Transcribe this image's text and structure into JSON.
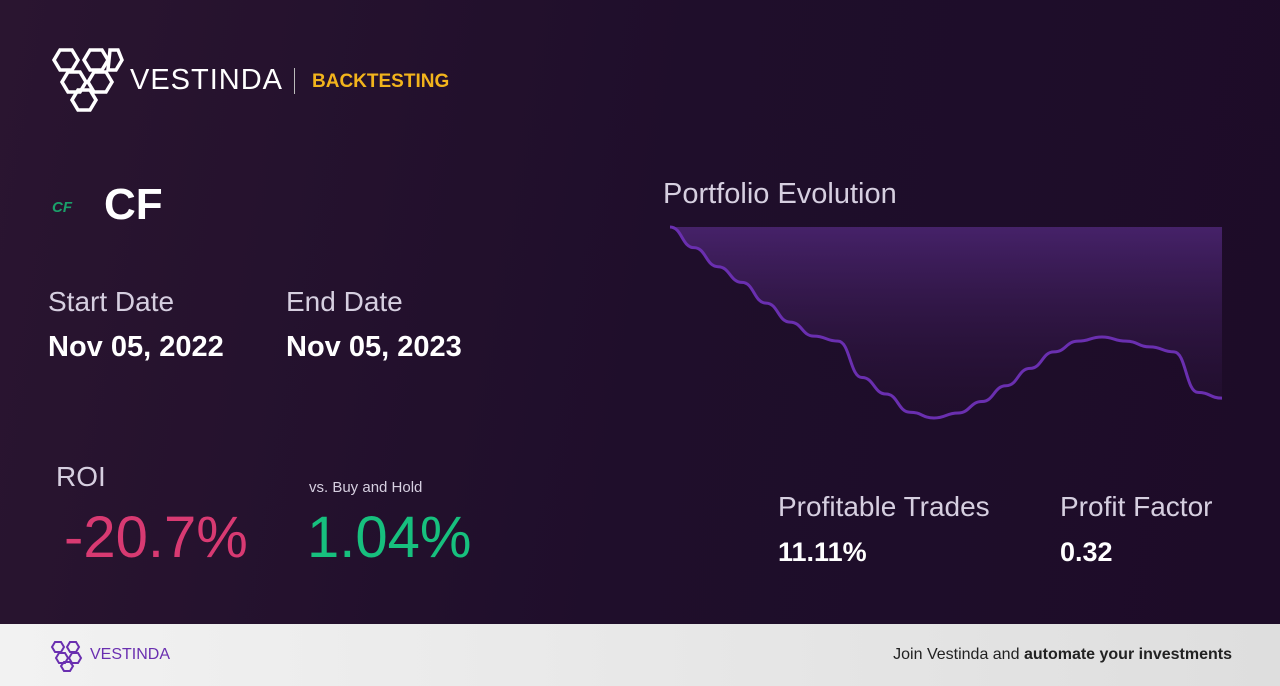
{
  "header": {
    "brand": "VESTINDA",
    "section": "BACKTESTING"
  },
  "asset": {
    "icon_text": "CF",
    "ticker": "CF"
  },
  "dates": {
    "start_label": "Start Date",
    "start": "Nov 05, 2022",
    "end_label": "End Date",
    "end": "Nov 05, 2023"
  },
  "roi": {
    "label": "ROI",
    "value": "-20.7%",
    "benchmark_label": "vs. Buy and Hold",
    "benchmark": "1.04%"
  },
  "portfolio": {
    "type": "area",
    "title": "Portfolio Evolution",
    "color": "#6a2fb0",
    "values": [
      0,
      -2.5,
      -4.8,
      -6.7,
      -9.2,
      -11.5,
      -13.2,
      -13.8,
      -18.2,
      -20.2,
      -22.4,
      -23.1,
      -22.5,
      -21.1,
      -19.2,
      -17.1,
      -15.1,
      -13.8,
      -13.3,
      -13.8,
      -14.5,
      -15.1,
      -20.0,
      -20.7
    ]
  },
  "stats": {
    "trades_label": "Profitable Trades",
    "trades": "11.11%",
    "factor_label": "Profit Factor",
    "factor": "0.32"
  },
  "footer": {
    "brand": "VESTINDA",
    "cta_plain": "Join Vestinda and",
    "cta_bold": "automate your investments"
  }
}
